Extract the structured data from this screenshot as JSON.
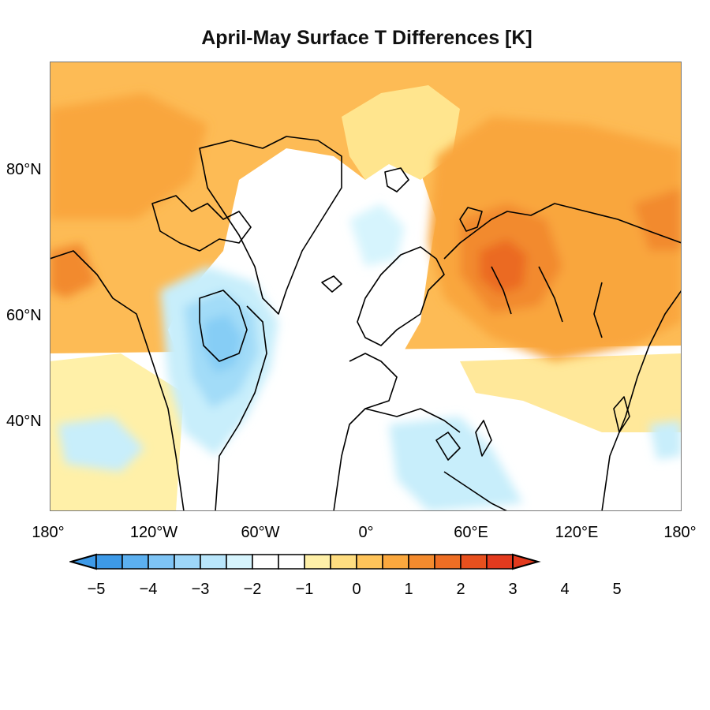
{
  "title": "April-May Surface T Differences [K]",
  "lat_labels": [
    "80°N",
    "60°N",
    "40°N"
  ],
  "lon_labels": [
    "180°",
    "120°W",
    "60°W",
    "0°",
    "60°E",
    "120°E",
    "180°"
  ],
  "colorbar": {
    "ticks": [
      "−5",
      "−4",
      "−3",
      "−2",
      "−1",
      "0",
      "1",
      "2",
      "3",
      "4",
      "5"
    ],
    "colors": [
      "#3d9ae8",
      "#5cb0f0",
      "#7ec4f5",
      "#9dd6f8",
      "#b9e6fb",
      "#d6f4fd",
      "#ffffff",
      "#ffffff",
      "#fff0a8",
      "#ffdd80",
      "#ffc45a",
      "#fba83e",
      "#f48b2e",
      "#ee6e24",
      "#e8501e",
      "#e33a1e"
    ]
  },
  "regions": [
    {
      "name": "arctic-ocean",
      "sign": "warm"
    },
    {
      "name": "greenland",
      "sign": "near-zero"
    },
    {
      "name": "north-atlantic",
      "sign": "near-zero"
    },
    {
      "name": "hudson-bay-canada",
      "sign": "cool"
    },
    {
      "name": "western-siberia",
      "sign": "warm"
    },
    {
      "name": "eastern-siberia",
      "sign": "warm"
    },
    {
      "name": "central-asia",
      "sign": "near-zero"
    }
  ]
}
